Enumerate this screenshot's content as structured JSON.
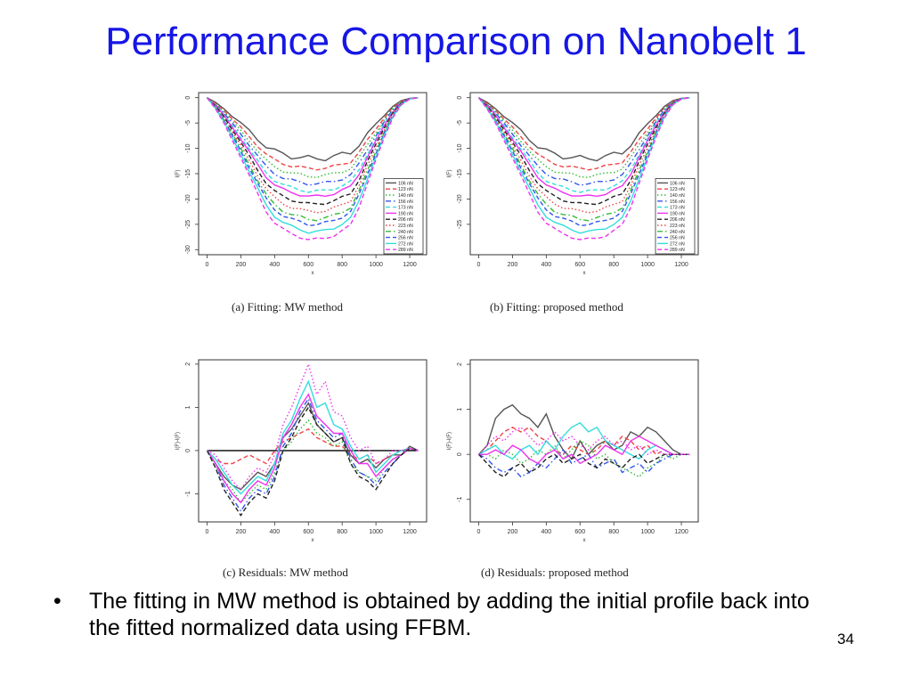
{
  "title": "Performance Comparison on Nanobelt 1",
  "bullet": {
    "marker": "•",
    "text": "The fitting in MW method  is obtained by adding the initial profile back into the fitted normalized data using FFBM."
  },
  "slide_number": "34",
  "chart_data": [
    {
      "id": "a",
      "type": "line",
      "caption": "(a) Fitting: MW method",
      "xlabel": "x",
      "ylabel": "l(F)",
      "xlim": [
        -50,
        1300
      ],
      "ylim": [
        -31,
        1
      ],
      "xticks": [
        0,
        200,
        400,
        600,
        800,
        1000,
        1200
      ],
      "yticks": [
        0,
        -5,
        -10,
        -15,
        -20,
        -25,
        -30
      ],
      "legend_position": "right",
      "curve_x": [
        0,
        50,
        100,
        150,
        200,
        250,
        300,
        350,
        400,
        450,
        500,
        550,
        600,
        650,
        700,
        750,
        800,
        850,
        900,
        950,
        1000,
        1050,
        1100,
        1150,
        1200,
        1250
      ],
      "base_shape": [
        0,
        -0.08,
        -0.18,
        -0.3,
        -0.42,
        -0.55,
        -0.68,
        -0.8,
        -0.88,
        -0.93,
        -0.96,
        -0.98,
        -1.0,
        -1.0,
        -0.99,
        -0.97,
        -0.94,
        -0.9,
        -0.77,
        -0.6,
        -0.44,
        -0.28,
        -0.14,
        -0.05,
        -0.01,
        0
      ],
      "series": [
        {
          "name": "106 nN",
          "depth": 12,
          "color": "#555555",
          "dash": "solid",
          "wiggle": 0.6
        },
        {
          "name": "123 nN",
          "depth": 14,
          "color": "#ee4444",
          "dash": "dashed",
          "wiggle": 0.3
        },
        {
          "name": "140 nN",
          "depth": 15.5,
          "color": "#33bb33",
          "dash": "dotted",
          "wiggle": 0.3
        },
        {
          "name": "156 nN",
          "depth": 17,
          "color": "#3355ee",
          "dash": "dashdot",
          "wiggle": 0.3
        },
        {
          "name": "173 nN",
          "depth": 18.5,
          "color": "#33dddd",
          "dash": "dashed",
          "wiggle": 0.3
        },
        {
          "name": "190 nN",
          "depth": 19.5,
          "color": "#ee33ee",
          "dash": "solid",
          "wiggle": 0.3
        },
        {
          "name": "206 nN",
          "depth": 21,
          "color": "#222222",
          "dash": "dashed",
          "wiggle": 0.3
        },
        {
          "name": "223 nN",
          "depth": 22.5,
          "color": "#ee4444",
          "dash": "dotted",
          "wiggle": 0.3
        },
        {
          "name": "240 nN",
          "depth": 24,
          "color": "#33bb33",
          "dash": "dashdot",
          "wiggle": 0.3
        },
        {
          "name": "256 nN",
          "depth": 25,
          "color": "#3355ee",
          "dash": "dashed",
          "wiggle": 0.3
        },
        {
          "name": "272 nN",
          "depth": 26.5,
          "color": "#33dddd",
          "dash": "solid",
          "wiggle": 0.3
        },
        {
          "name": "289 nN",
          "depth": 28,
          "color": "#ee33ee",
          "dash": "dashed",
          "wiggle": 0.3
        }
      ]
    },
    {
      "id": "b",
      "type": "line",
      "caption": "(b) Fitting: proposed method",
      "xlabel": "x",
      "ylabel": "l(F)",
      "xlim": [
        -50,
        1300
      ],
      "ylim": [
        -31,
        1
      ],
      "xticks": [
        0,
        200,
        400,
        600,
        800,
        1000,
        1200
      ],
      "yticks": [
        0,
        -5,
        -10,
        -15,
        -20,
        -25
      ],
      "legend_position": "right",
      "curve_x": [
        0,
        50,
        100,
        150,
        200,
        250,
        300,
        350,
        400,
        450,
        500,
        550,
        600,
        650,
        700,
        750,
        800,
        850,
        900,
        950,
        1000,
        1050,
        1100,
        1150,
        1200,
        1250
      ],
      "base_shape": [
        0,
        -0.08,
        -0.18,
        -0.3,
        -0.42,
        -0.55,
        -0.68,
        -0.8,
        -0.88,
        -0.93,
        -0.96,
        -0.98,
        -1.0,
        -1.0,
        -0.99,
        -0.97,
        -0.94,
        -0.9,
        -0.77,
        -0.6,
        -0.44,
        -0.28,
        -0.14,
        -0.05,
        -0.01,
        0
      ],
      "series": [
        {
          "name": "106 nN",
          "depth": 12,
          "color": "#555555",
          "dash": "solid",
          "wiggle": 0.6
        },
        {
          "name": "123 nN",
          "depth": 14,
          "color": "#ee4444",
          "dash": "dashed",
          "wiggle": 0.3
        },
        {
          "name": "140 nN",
          "depth": 15.5,
          "color": "#33bb33",
          "dash": "dotted",
          "wiggle": 0.3
        },
        {
          "name": "156 nN",
          "depth": 17,
          "color": "#3355ee",
          "dash": "dashdot",
          "wiggle": 0.3
        },
        {
          "name": "173 nN",
          "depth": 18.5,
          "color": "#33dddd",
          "dash": "dashed",
          "wiggle": 0.3
        },
        {
          "name": "190 nN",
          "depth": 19.5,
          "color": "#ee33ee",
          "dash": "solid",
          "wiggle": 0.3
        },
        {
          "name": "206 nN",
          "depth": 21,
          "color": "#222222",
          "dash": "dashed",
          "wiggle": 0.3
        },
        {
          "name": "223 nN",
          "depth": 22.5,
          "color": "#ee4444",
          "dash": "dotted",
          "wiggle": 0.3
        },
        {
          "name": "240 nN",
          "depth": 24,
          "color": "#33bb33",
          "dash": "dashdot",
          "wiggle": 0.3
        },
        {
          "name": "256 nN",
          "depth": 25,
          "color": "#3355ee",
          "dash": "dashed",
          "wiggle": 0.3
        },
        {
          "name": "272 nN",
          "depth": 26.5,
          "color": "#33dddd",
          "dash": "solid",
          "wiggle": 0.3
        },
        {
          "name": "289 nN",
          "depth": 28,
          "color": "#ee33ee",
          "dash": "dashed",
          "wiggle": 0.3
        }
      ]
    },
    {
      "id": "c",
      "type": "line",
      "caption": "(c) Residuals: MW method",
      "xlabel": "x",
      "ylabel": "l(F)-l(F)",
      "xlim": [
        -50,
        1300
      ],
      "ylim": [
        -1.65,
        2.1
      ],
      "xticks": [
        0,
        200,
        400,
        600,
        800,
        1000,
        1200
      ],
      "yticks": [
        2,
        1,
        0,
        -1
      ],
      "zero_line": true,
      "curve_x": [
        0,
        50,
        100,
        150,
        200,
        250,
        300,
        350,
        400,
        450,
        500,
        550,
        600,
        650,
        700,
        750,
        800,
        850,
        900,
        950,
        1000,
        1050,
        1100,
        1150,
        1200,
        1250
      ],
      "series": [
        {
          "color": "#555555",
          "dash": "solid",
          "values": [
            0,
            -0.3,
            -0.6,
            -0.8,
            -0.9,
            -0.7,
            -0.5,
            -0.6,
            -0.3,
            0.3,
            0.5,
            0.8,
            1.1,
            0.6,
            0.4,
            0.2,
            0.3,
            -0.1,
            -0.3,
            -0.2,
            -0.4,
            -0.2,
            -0.1,
            -0.1,
            0.1,
            0
          ]
        },
        {
          "color": "#ee4444",
          "dash": "dashed",
          "values": [
            0,
            -0.2,
            -0.3,
            -0.3,
            -0.2,
            -0.1,
            -0.2,
            -0.3,
            0.0,
            0.2,
            0.3,
            0.4,
            0.5,
            0.3,
            0.2,
            0.1,
            0.1,
            -0.1,
            -0.2,
            -0.1,
            -0.3,
            -0.2,
            -0.1,
            0.0,
            0.05,
            0
          ]
        },
        {
          "color": "#33bb33",
          "dash": "dotted",
          "values": [
            0,
            -0.4,
            -0.7,
            -0.9,
            -1.2,
            -1.0,
            -0.8,
            -0.9,
            -0.5,
            0.0,
            0.2,
            0.5,
            0.7,
            0.4,
            0.3,
            0.1,
            0.2,
            -0.3,
            -0.5,
            -0.6,
            -0.7,
            -0.4,
            -0.2,
            -0.1,
            0.05,
            0
          ]
        },
        {
          "color": "#3355ee",
          "dash": "dashdot",
          "values": [
            0,
            -0.3,
            -0.8,
            -1.1,
            -1.4,
            -1.1,
            -0.9,
            -1.0,
            -0.6,
            0.1,
            0.4,
            0.9,
            1.2,
            0.7,
            0.5,
            0.3,
            0.4,
            -0.2,
            -0.5,
            -0.6,
            -0.8,
            -0.5,
            -0.3,
            -0.1,
            0.05,
            0
          ]
        },
        {
          "color": "#33dddd",
          "dash": "solid",
          "values": [
            0,
            -0.2,
            -0.5,
            -0.8,
            -1.0,
            -0.8,
            -0.6,
            -0.7,
            -0.3,
            0.4,
            0.7,
            1.2,
            1.6,
            1.0,
            1.1,
            0.6,
            0.5,
            0.1,
            -0.2,
            -0.1,
            -0.5,
            -0.3,
            -0.1,
            0.0,
            0.05,
            0
          ]
        },
        {
          "color": "#ee33ee",
          "dash": "solid",
          "values": [
            0,
            -0.3,
            -0.7,
            -1.0,
            -1.2,
            -0.9,
            -0.7,
            -0.8,
            -0.4,
            0.3,
            0.6,
            1.0,
            1.3,
            0.8,
            0.6,
            0.4,
            0.4,
            0.0,
            -0.3,
            -0.3,
            -0.6,
            -0.4,
            -0.2,
            -0.1,
            0.05,
            0
          ]
        },
        {
          "color": "#222222",
          "dash": "dashed",
          "values": [
            0,
            -0.4,
            -0.9,
            -1.2,
            -1.5,
            -1.2,
            -1.0,
            -1.1,
            -0.7,
            0.0,
            0.3,
            0.7,
            1.0,
            0.6,
            0.4,
            0.2,
            0.3,
            -0.3,
            -0.6,
            -0.7,
            -0.9,
            -0.6,
            -0.3,
            -0.1,
            0.05,
            0
          ]
        },
        {
          "color": "#ee33ee",
          "dash": "dotted",
          "values": [
            0,
            -0.1,
            -0.4,
            -0.7,
            -0.9,
            -0.6,
            -0.4,
            -0.5,
            -0.1,
            0.6,
            1.0,
            1.5,
            2.0,
            1.3,
            1.6,
            0.9,
            0.8,
            0.3,
            0.0,
            0.1,
            -0.3,
            -0.2,
            0.0,
            0.0,
            0.05,
            0
          ]
        }
      ]
    },
    {
      "id": "d",
      "type": "line",
      "caption": "(d) Residuals: proposed method",
      "xlabel": "x",
      "ylabel": "l(F)-l(F)",
      "xlim": [
        -50,
        1300
      ],
      "ylim": [
        -1.5,
        2.1
      ],
      "xticks": [
        0,
        200,
        400,
        600,
        800,
        1000,
        1200
      ],
      "yticks": [
        2,
        1,
        0,
        -1
      ],
      "curve_x": [
        0,
        50,
        100,
        150,
        200,
        250,
        300,
        350,
        400,
        450,
        500,
        550,
        600,
        650,
        700,
        750,
        800,
        850,
        900,
        950,
        1000,
        1050,
        1100,
        1150,
        1200,
        1250
      ],
      "series": [
        {
          "color": "#555555",
          "dash": "solid",
          "values": [
            0,
            0.2,
            0.8,
            1.0,
            1.1,
            0.9,
            0.8,
            0.6,
            0.9,
            0.4,
            0.1,
            -0.1,
            0.3,
            0.0,
            0.2,
            0.3,
            0.1,
            0.2,
            0.5,
            0.4,
            0.6,
            0.5,
            0.3,
            0.1,
            0.0,
            0
          ]
        },
        {
          "color": "#ee4444",
          "dash": "dashed",
          "values": [
            0,
            0.1,
            0.3,
            0.5,
            0.6,
            0.5,
            0.6,
            0.4,
            0.3,
            0.1,
            0.0,
            0.2,
            0.1,
            0.0,
            0.1,
            0.3,
            0.2,
            0.4,
            0.3,
            0.1,
            0.2,
            0.0,
            0.1,
            0.0,
            0.0,
            0
          ]
        },
        {
          "color": "#33bb33",
          "dash": "dotted",
          "values": [
            0,
            0.0,
            -0.1,
            0.1,
            0.0,
            -0.2,
            -0.1,
            0.1,
            0.0,
            0.2,
            -0.1,
            0.1,
            0.3,
            0.2,
            -0.1,
            0.0,
            -0.2,
            -0.3,
            -0.4,
            -0.5,
            -0.3,
            -0.2,
            0.0,
            -0.1,
            0.0,
            0
          ]
        },
        {
          "color": "#3355ee",
          "dash": "dashdot",
          "values": [
            0,
            -0.1,
            -0.3,
            -0.4,
            -0.3,
            -0.5,
            -0.4,
            -0.2,
            -0.3,
            -0.1,
            0.1,
            -0.2,
            -0.1,
            0.0,
            -0.3,
            -0.2,
            -0.1,
            -0.4,
            -0.3,
            -0.2,
            -0.4,
            -0.2,
            -0.1,
            0.0,
            0.0,
            0
          ]
        },
        {
          "color": "#33dddd",
          "dash": "solid",
          "values": [
            0,
            0.1,
            0.2,
            0.0,
            -0.1,
            0.1,
            0.2,
            0.0,
            0.3,
            0.1,
            0.4,
            0.6,
            0.7,
            0.5,
            0.6,
            0.3,
            0.2,
            0.1,
            0.0,
            -0.1,
            0.1,
            0.2,
            0.1,
            0.0,
            0.0,
            0
          ]
        },
        {
          "color": "#ee33ee",
          "dash": "solid",
          "values": [
            0,
            0.0,
            0.1,
            0.0,
            0.2,
            0.1,
            -0.1,
            -0.2,
            0.0,
            0.1,
            -0.1,
            0.0,
            -0.2,
            -0.1,
            0.0,
            0.2,
            0.1,
            0.0,
            0.3,
            0.4,
            0.3,
            0.2,
            0.1,
            0.0,
            0.0,
            0
          ]
        },
        {
          "color": "#222222",
          "dash": "dashed",
          "values": [
            0,
            -0.2,
            -0.4,
            -0.5,
            -0.3,
            -0.2,
            -0.4,
            -0.3,
            -0.1,
            0.0,
            -0.2,
            -0.1,
            0.0,
            -0.2,
            -0.3,
            -0.1,
            -0.2,
            -0.3,
            -0.1,
            0.0,
            -0.2,
            -0.1,
            0.0,
            0.0,
            0.0,
            0
          ]
        },
        {
          "color": "#ee33ee",
          "dash": "dotted",
          "values": [
            0,
            0.2,
            0.4,
            0.3,
            0.5,
            0.6,
            0.4,
            0.2,
            0.3,
            0.5,
            0.3,
            0.4,
            0.2,
            0.1,
            0.3,
            0.4,
            0.2,
            0.3,
            0.1,
            0.2,
            0.0,
            0.1,
            0.0,
            0.0,
            0.0,
            0
          ]
        }
      ]
    }
  ]
}
